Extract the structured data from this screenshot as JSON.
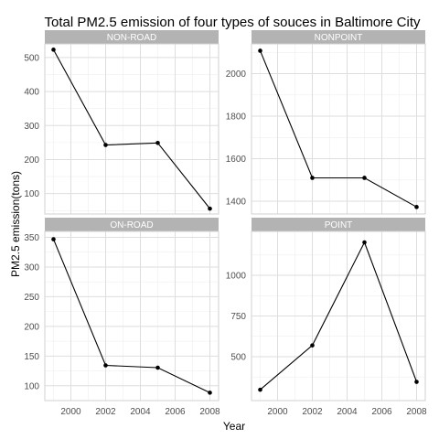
{
  "chart_data": {
    "type": "line",
    "title": "Total PM2.5 emission of four types of souces in Baltimore City",
    "xlabel": "Year",
    "ylabel": "PM2.5 emission(tons)",
    "grid": true,
    "legend": "none",
    "facet_layout": "2x2",
    "x_scale": "shared",
    "y_scale": "free",
    "xlim": [
      1998.5,
      2008.5
    ],
    "x_ticks": [
      2000,
      2002,
      2004,
      2006,
      2008
    ],
    "colors": {
      "line": "#000000",
      "point": "#000000",
      "strip_fill": "#b3b3b3",
      "strip_text": "#ffffff",
      "grid_major": "#dedede",
      "grid_minor": "#efefef",
      "panel_border": "#d2d2d2"
    },
    "panels": [
      {
        "name": "NON-ROAD",
        "x": [
          1999,
          2002,
          2005,
          2008
        ],
        "values": [
          522.9,
          242.9,
          248.9,
          55.8
        ],
        "ylim": [
          40,
          540
        ],
        "y_ticks": [
          100,
          200,
          300,
          400,
          500
        ]
      },
      {
        "name": "NONPOINT",
        "x": [
          1999,
          2002,
          2005,
          2008
        ],
        "values": [
          2108,
          1510,
          1510,
          1373
        ],
        "ylim": [
          1340,
          2140
        ],
        "y_ticks": [
          1400,
          1600,
          1800,
          2000
        ]
      },
      {
        "name": "ON-ROAD",
        "x": [
          1999,
          2002,
          2005,
          2008
        ],
        "values": [
          346.8,
          134.3,
          130.4,
          88.3
        ],
        "ylim": [
          75,
          360
        ],
        "y_ticks": [
          100,
          150,
          200,
          250,
          300,
          350
        ]
      },
      {
        "name": "POINT",
        "x": [
          1999,
          2002,
          2005,
          2008
        ],
        "values": [
          296.8,
          569.3,
          1202.5,
          344.98
        ],
        "ylim": [
          230,
          1270
        ],
        "y_ticks": [
          500,
          750,
          1000
        ]
      }
    ]
  }
}
